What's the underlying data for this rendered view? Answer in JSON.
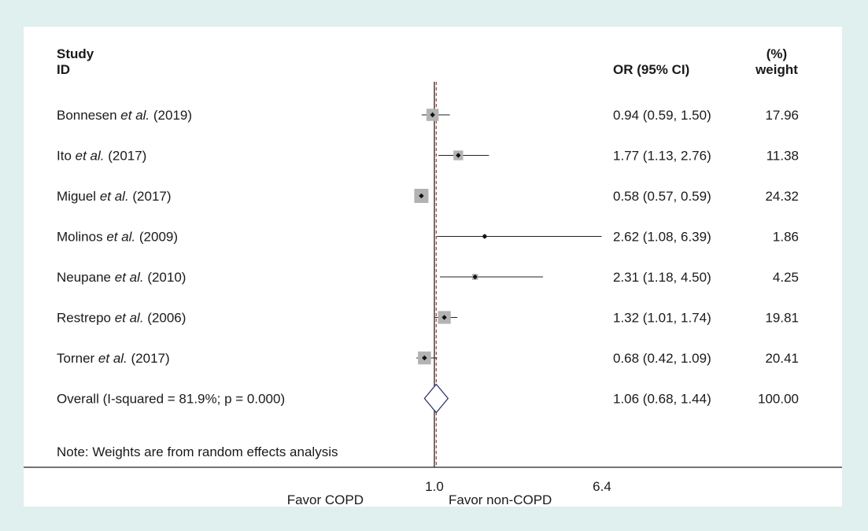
{
  "chart_data": {
    "type": "forest",
    "header": {
      "study": "Study",
      "id": "ID",
      "or_ci": "OR (95% CI)",
      "weight_pct": "(%)",
      "weight": "weight"
    },
    "x_ticks": [
      {
        "value": 1.0,
        "label": "1.0"
      },
      {
        "value": 6.4,
        "label": "6.4"
      }
    ],
    "favor_left": "Favor COPD",
    "favor_right": "Favor non-COPD",
    "null_line": 1.0,
    "overall_line": 1.06,
    "studies": [
      {
        "name": "Bonnesen",
        "etal": "et al.",
        "year": "(2019)",
        "or": 0.94,
        "lo": 0.59,
        "hi": 1.5,
        "ci_text": "0.94 (0.59, 1.50)",
        "weight": 17.96,
        "weight_text": "17.96"
      },
      {
        "name": "Ito",
        "etal": "et al.",
        "year": "(2017)",
        "or": 1.77,
        "lo": 1.13,
        "hi": 2.76,
        "ci_text": "1.77 (1.13, 2.76)",
        "weight": 11.38,
        "weight_text": "11.38"
      },
      {
        "name": "Miguel",
        "etal": "et al.",
        "year": "(2017)",
        "or": 0.58,
        "lo": 0.57,
        "hi": 0.59,
        "ci_text": "0.58 (0.57, 0.59)",
        "weight": 24.32,
        "weight_text": "24.32"
      },
      {
        "name": "Molinos",
        "etal": "et al.",
        "year": "(2009)",
        "or": 2.62,
        "lo": 1.08,
        "hi": 6.39,
        "ci_text": "2.62 (1.08, 6.39)",
        "weight": 1.86,
        "weight_text": "1.86"
      },
      {
        "name": "Neupane",
        "etal": "et al.",
        "year": "(2010)",
        "or": 2.31,
        "lo": 1.18,
        "hi": 4.5,
        "ci_text": "2.31 (1.18, 4.50)",
        "weight": 4.25,
        "weight_text": "4.25"
      },
      {
        "name": "Restrepo",
        "etal": "et al.",
        "year": "(2006)",
        "or": 1.32,
        "lo": 1.01,
        "hi": 1.74,
        "ci_text": "1.32 (1.01, 1.74)",
        "weight": 19.81,
        "weight_text": "19.81"
      },
      {
        "name": "Torner",
        "etal": "et al.",
        "year": "(2017)",
        "or": 0.68,
        "lo": 0.42,
        "hi": 1.09,
        "ci_text": "0.68 (0.42, 1.09)",
        "weight": 20.41,
        "weight_text": "20.41"
      }
    ],
    "overall": {
      "label": "Overall (I-squared = 81.9%; p = 0.000)",
      "or": 1.06,
      "lo": 0.68,
      "hi": 1.44,
      "ci_text": "1.06 (0.68, 1.44)",
      "weight_text": "100.00"
    },
    "note": "Note: Weights are from random effects analysis",
    "colors": {
      "box": "#b3b3b3",
      "line": "#222222",
      "overall_line": "#c0392b",
      "diamond": "#2a2a6a"
    }
  }
}
